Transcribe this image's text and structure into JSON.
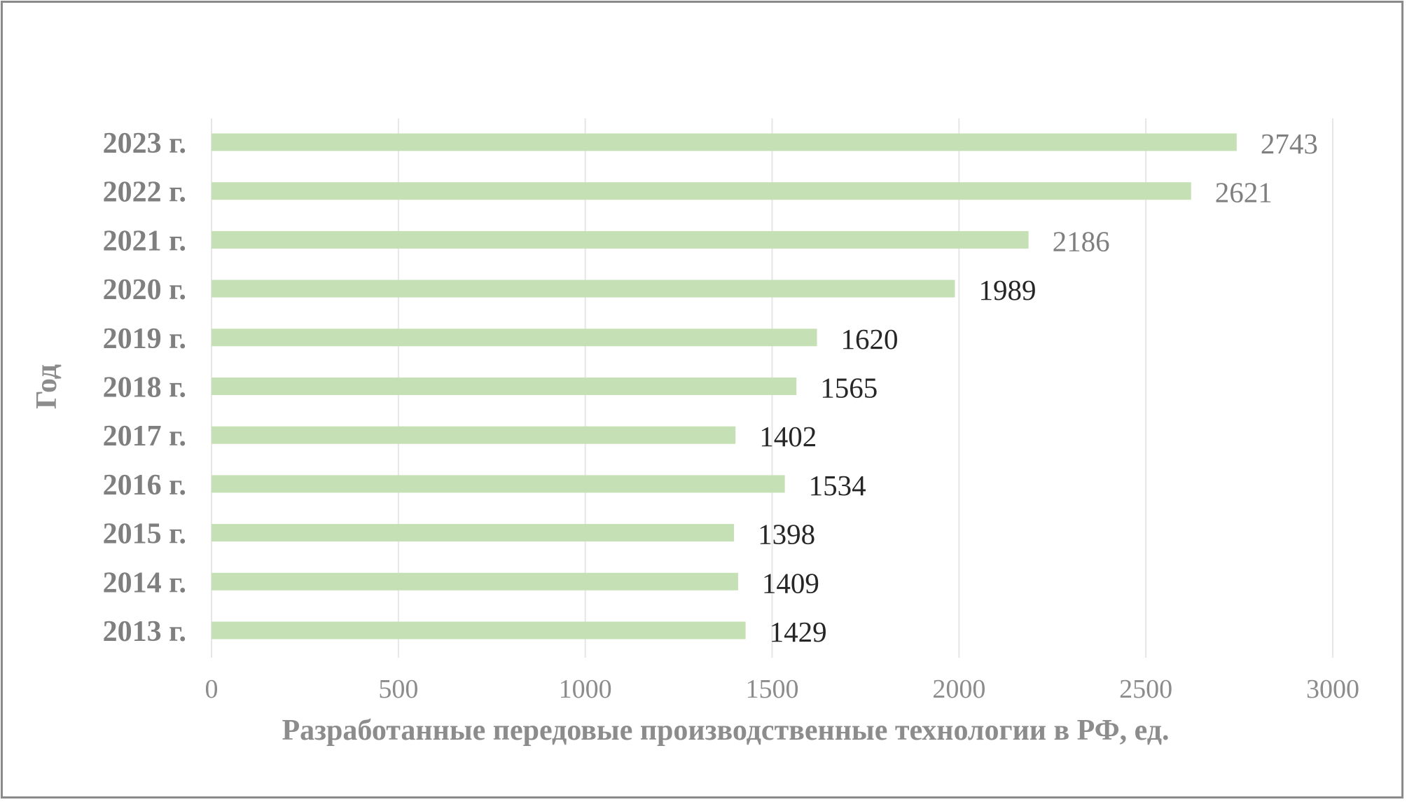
{
  "chart_data": {
    "type": "bar",
    "orientation": "horizontal",
    "categories": [
      "2013 г.",
      "2014 г.",
      "2015 г.",
      "2016 г.",
      "2017 г.",
      "2018 г.",
      "2019 г.",
      "2020 г.",
      "2021 г.",
      "2022 г.",
      "2023 г."
    ],
    "values": [
      1429,
      1409,
      1398,
      1534,
      1402,
      1565,
      1620,
      1989,
      2186,
      2621,
      2743
    ],
    "title": "",
    "xlabel": "Разработанные передовые производственные технологии в РФ, ед.",
    "ylabel": "Год",
    "xlim": [
      0,
      3000
    ],
    "xticks": [
      "0",
      "500",
      "1000",
      "1500",
      "2000",
      "2500",
      "3000"
    ],
    "grid": "vertical",
    "legend": "none",
    "colors": {
      "bar_center": "#70ad47",
      "bar_edge": "#c5e0b4",
      "grid": "#e6e6e6",
      "axis_text": "#8c8c8c",
      "frame": "#8a8a8a"
    }
  }
}
